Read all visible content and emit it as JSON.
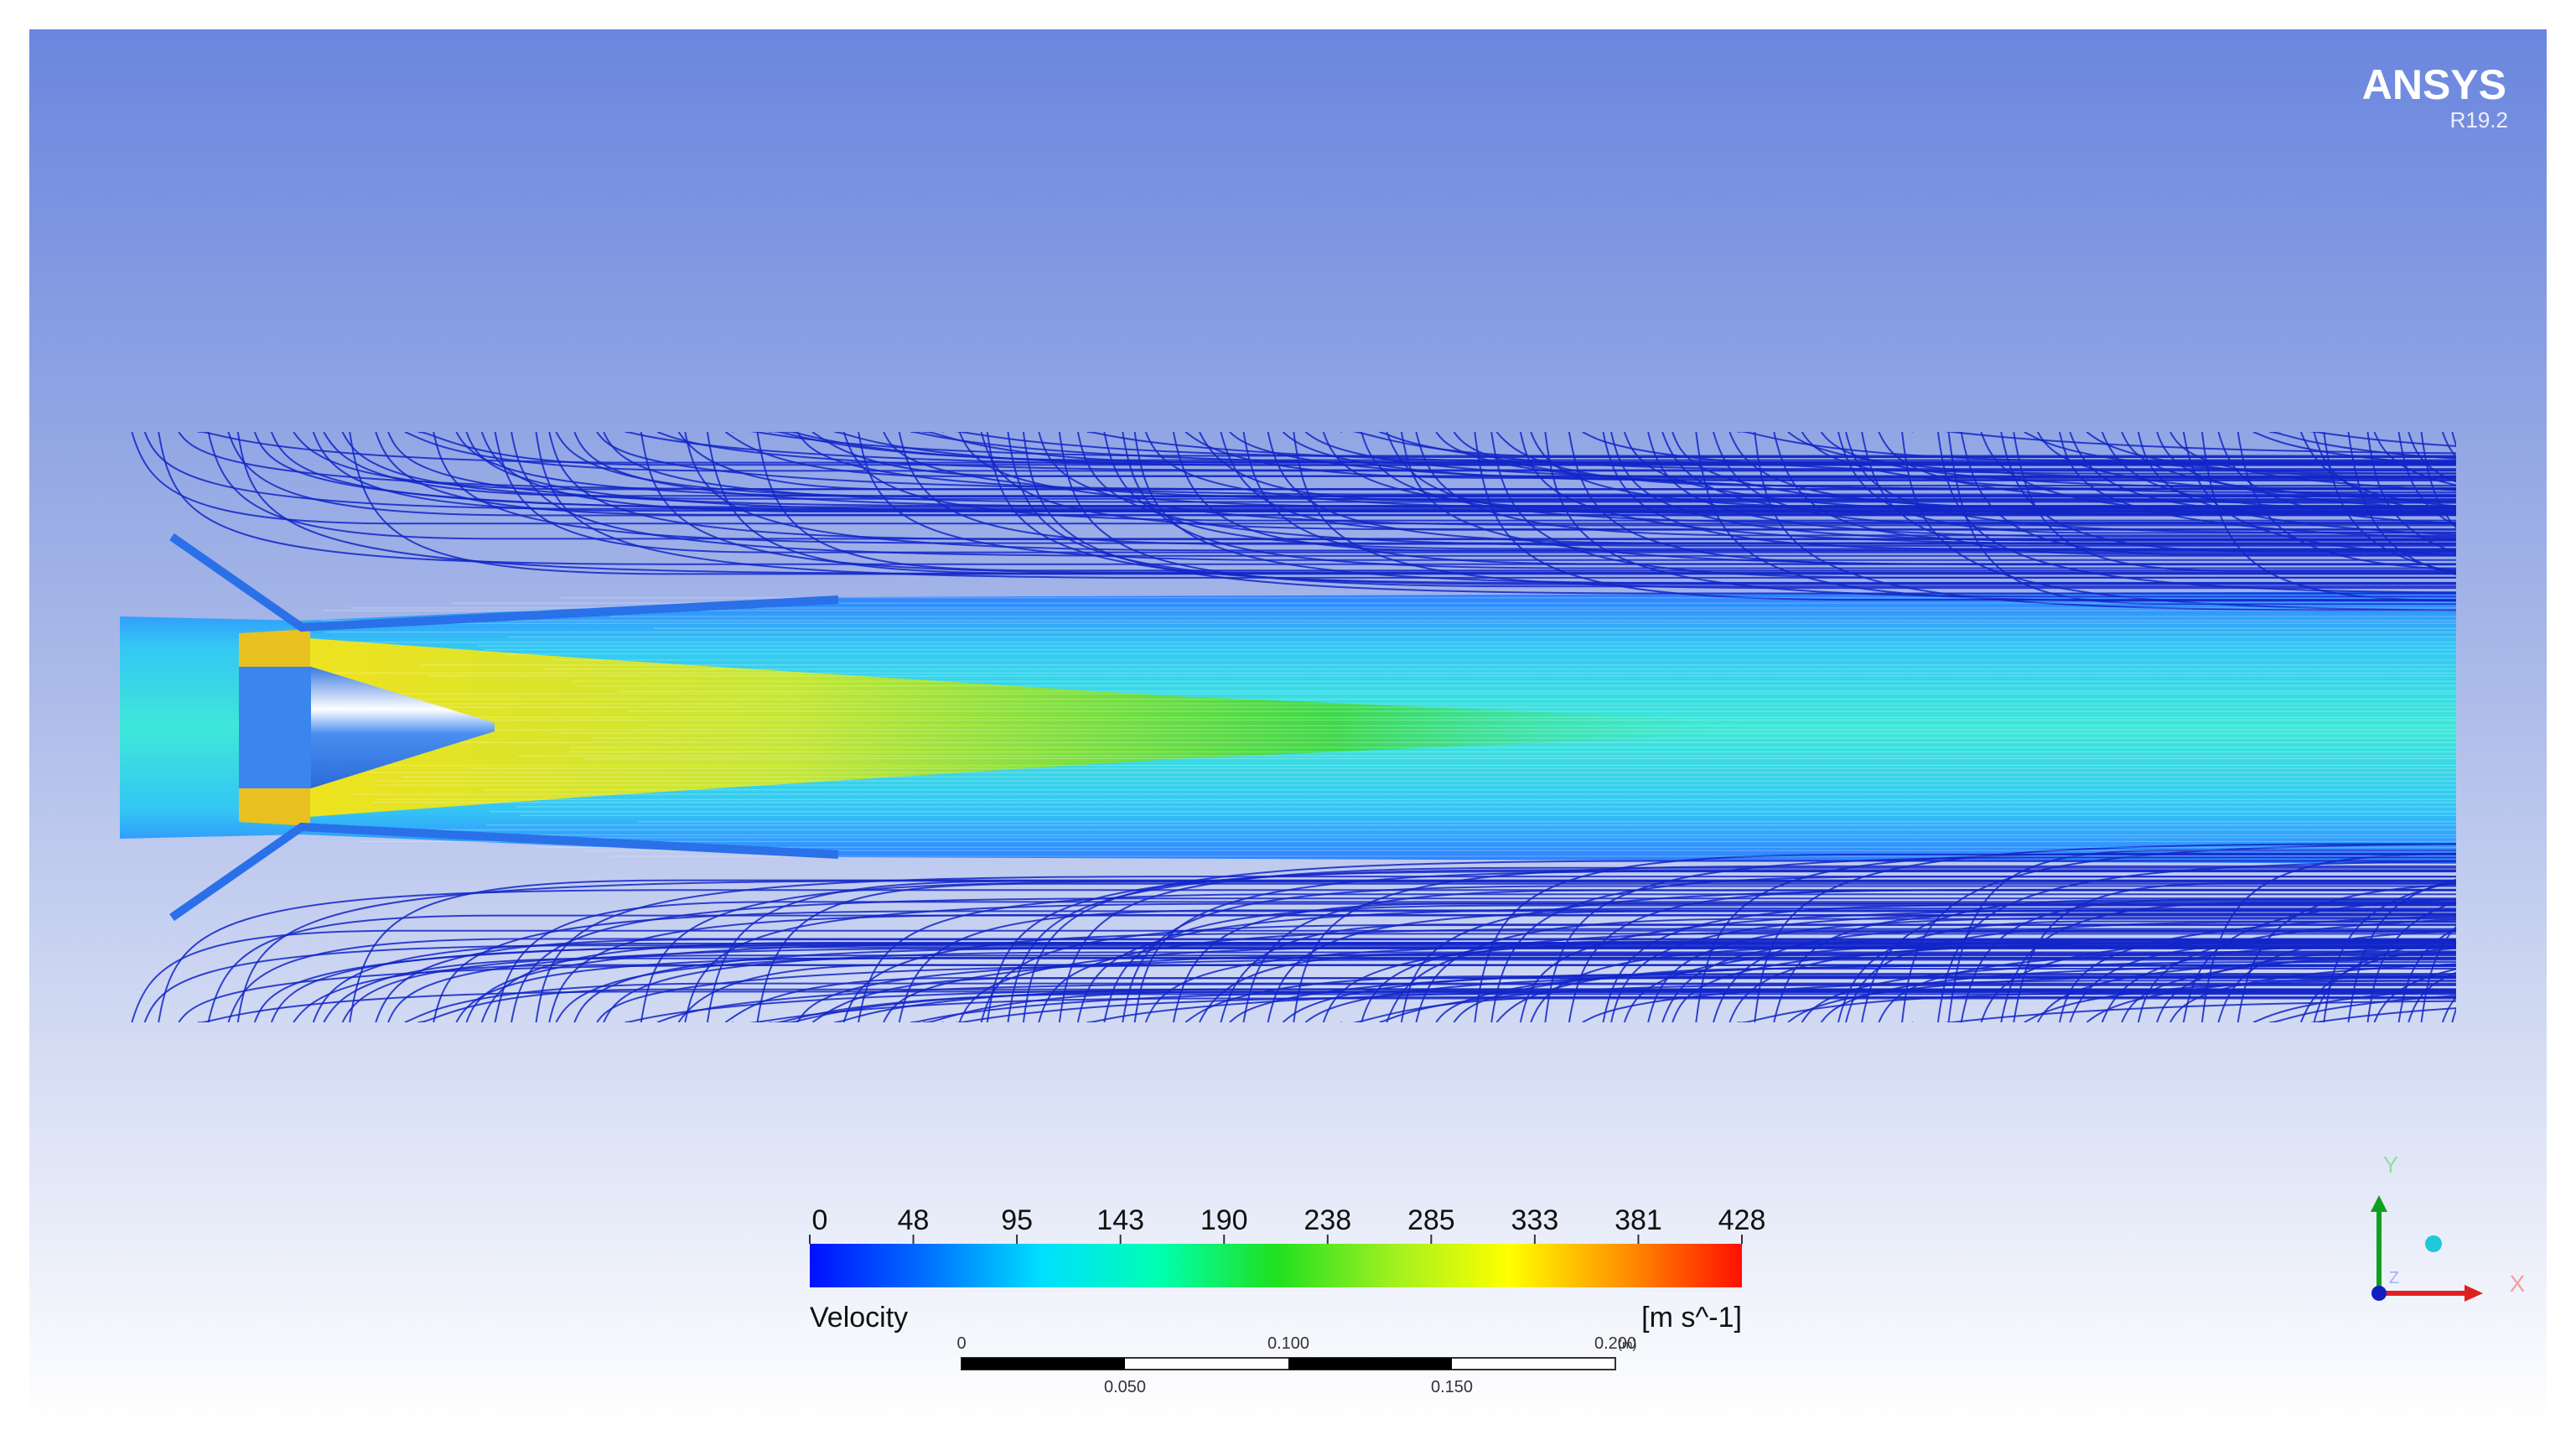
{
  "logo": {
    "brand": "ANSYS",
    "version": "R19.2"
  },
  "legend": {
    "title": "Velocity",
    "unit": "[m s^-1]",
    "ticks": [
      "0",
      "48",
      "95",
      "143",
      "190",
      "238",
      "285",
      "333",
      "381",
      "428"
    ]
  },
  "scale_bar": {
    "top_labels": [
      "0",
      "0.100",
      "0.200"
    ],
    "unit": "(m)",
    "bottom_labels": [
      "0.050",
      "0.150"
    ]
  },
  "axes": {
    "y": "Y",
    "x": "X",
    "z": "Z"
  }
}
